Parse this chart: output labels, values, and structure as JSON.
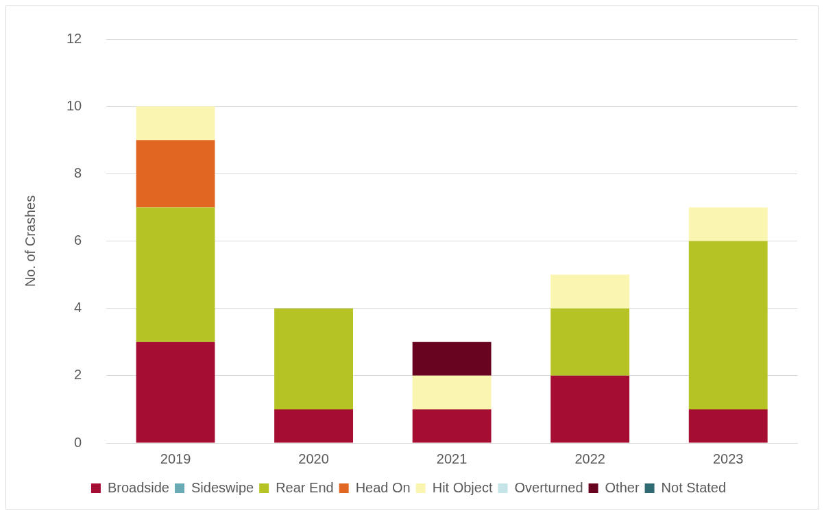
{
  "chart_data": {
    "type": "bar",
    "ylabel": "No. of Crashes",
    "categories": [
      "2019",
      "2020",
      "2021",
      "2022",
      "2023"
    ],
    "stacked": true,
    "ylim": [
      0,
      12
    ],
    "yticks": [
      0,
      2,
      4,
      6,
      8,
      10,
      12
    ],
    "grid": "y",
    "legend": "bottom",
    "series": [
      {
        "name": "Broadside",
        "color": "#a50d32",
        "values": [
          3,
          1,
          1,
          2,
          1
        ]
      },
      {
        "name": "Sideswipe",
        "color": "#6aaab5",
        "values": [
          0,
          0,
          0,
          0,
          0
        ]
      },
      {
        "name": "Rear End",
        "color": "#b5c424",
        "values": [
          4,
          3,
          0,
          2,
          5
        ]
      },
      {
        "name": "Head On",
        "color": "#e06622",
        "values": [
          2,
          0,
          0,
          0,
          0
        ]
      },
      {
        "name": "Hit Object",
        "color": "#fbf5b2",
        "values": [
          1,
          0,
          1,
          1,
          1
        ]
      },
      {
        "name": "Overturned",
        "color": "#c4e4e8",
        "values": [
          0,
          0,
          0,
          0,
          0
        ]
      },
      {
        "name": "Other",
        "color": "#680420",
        "values": [
          0,
          0,
          1,
          0,
          0
        ]
      },
      {
        "name": "Not Stated",
        "color": "#2f6a72",
        "values": [
          0,
          0,
          0,
          0,
          0
        ]
      }
    ]
  }
}
